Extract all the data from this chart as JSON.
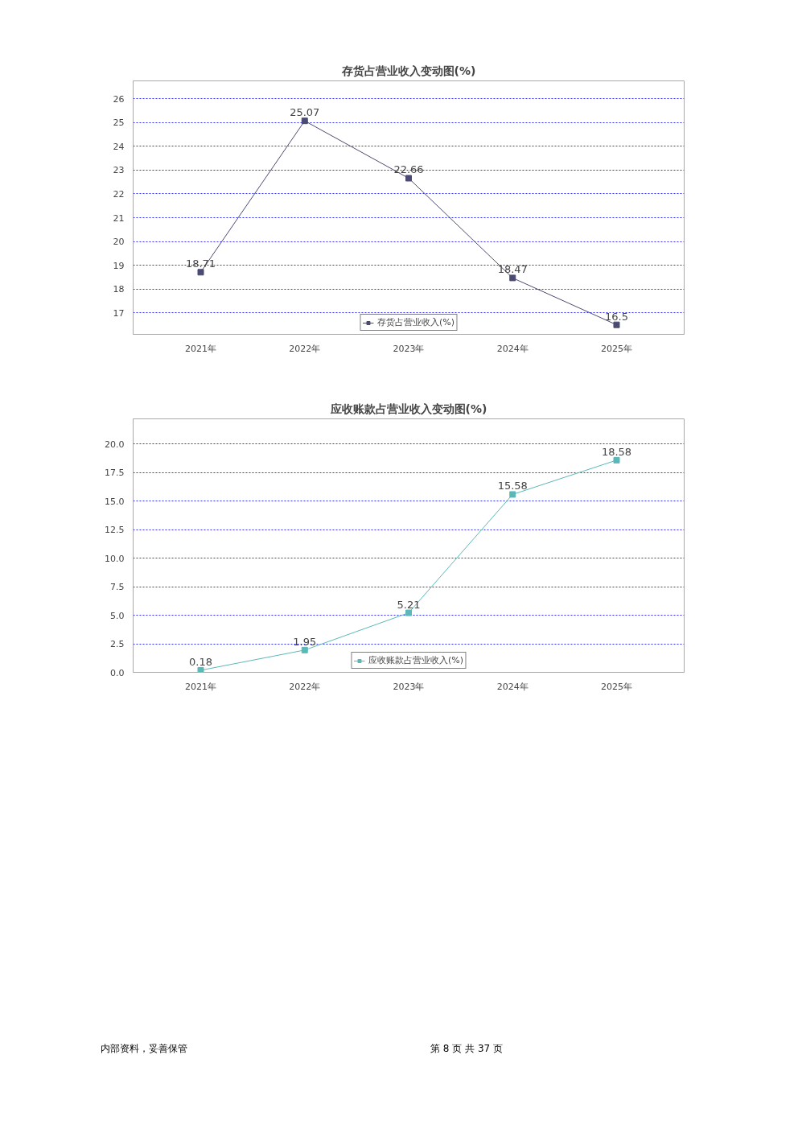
{
  "chart_data": [
    {
      "type": "line",
      "title": "存货占营业收入变动图(%)",
      "categories": [
        "2021年",
        "2022年",
        "2023年",
        "2024年",
        "2025年"
      ],
      "series": [
        {
          "name": "存货占营业收入(%)",
          "color": "#4a4a72",
          "values": [
            18.71,
            25.07,
            22.66,
            18.47,
            16.5
          ]
        }
      ],
      "ylim": [
        16.1,
        26.75
      ],
      "yticks": [
        17,
        18,
        19,
        20,
        21,
        22,
        23,
        24,
        25,
        26
      ],
      "grid": "y",
      "legend": "bottom",
      "marker": "square",
      "line_style": "solid",
      "data_labels": true
    },
    {
      "type": "line",
      "title": "应收账款占营业收入变动图(%)",
      "categories": [
        "2021年",
        "2022年",
        "2023年",
        "2024年",
        "2025年"
      ],
      "series": [
        {
          "name": "应收账款占营业收入(%)",
          "color": "#5bb8b8",
          "values": [
            0.18,
            1.95,
            5.21,
            15.58,
            18.58
          ]
        }
      ],
      "ylim": [
        0,
        22.2
      ],
      "yticks": [
        {
          "value": 0,
          "label": "0.0"
        },
        {
          "value": 2.5,
          "label": "2.5"
        },
        {
          "value": 5,
          "label": "5.0"
        },
        {
          "value": 7.5,
          "label": "7.5"
        },
        {
          "value": 10,
          "label": "10.0"
        },
        {
          "value": 12.5,
          "label": "12.5"
        },
        {
          "value": 15,
          "label": "15.0"
        },
        {
          "value": 17.5,
          "label": "17.5"
        },
        {
          "value": 20,
          "label": "20.0"
        }
      ],
      "grid": "y",
      "legend": "bottom",
      "marker": "square",
      "line_style": "solid",
      "data_labels": true,
      "annotations": [
        "内部资料，妥善保管",
        "第 8 页 共 37 页"
      ]
    }
  ]
}
